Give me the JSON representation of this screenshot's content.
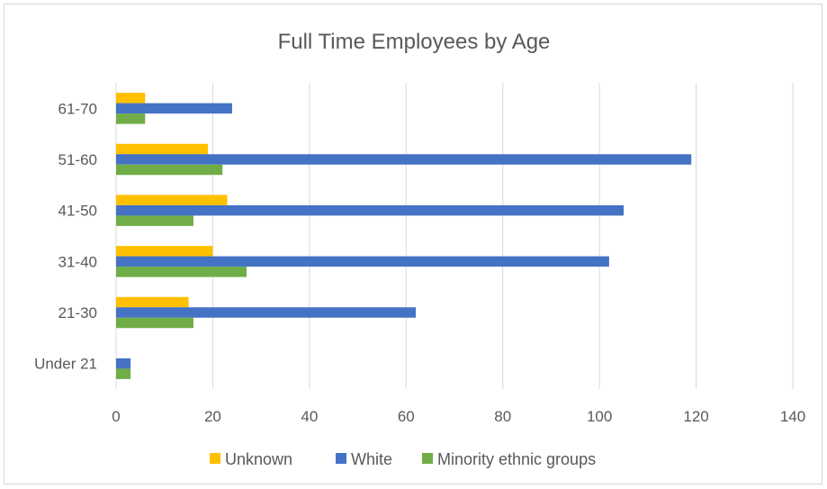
{
  "chart_data": {
    "type": "bar",
    "orientation": "horizontal",
    "title": "Full Time Employees by Age",
    "xlabel": "",
    "ylabel": "",
    "categories": [
      "Under 21",
      "21-30",
      "31-40",
      "41-50",
      "51-60",
      "61-70"
    ],
    "series": [
      {
        "name": "Unknown",
        "color": "#ffc000",
        "values": [
          0,
          15,
          20,
          23,
          19,
          6
        ]
      },
      {
        "name": "White",
        "color": "#4472c4",
        "values": [
          3,
          62,
          102,
          105,
          119,
          24
        ]
      },
      {
        "name": "Minority ethnic groups",
        "color": "#70ad47",
        "values": [
          3,
          16,
          27,
          16,
          22,
          6
        ]
      }
    ],
    "xlim": [
      0,
      140
    ],
    "xticks": [
      "0",
      "20",
      "40",
      "60",
      "80",
      "100",
      "120",
      "140"
    ],
    "grid": true,
    "legend_position": "bottom"
  }
}
